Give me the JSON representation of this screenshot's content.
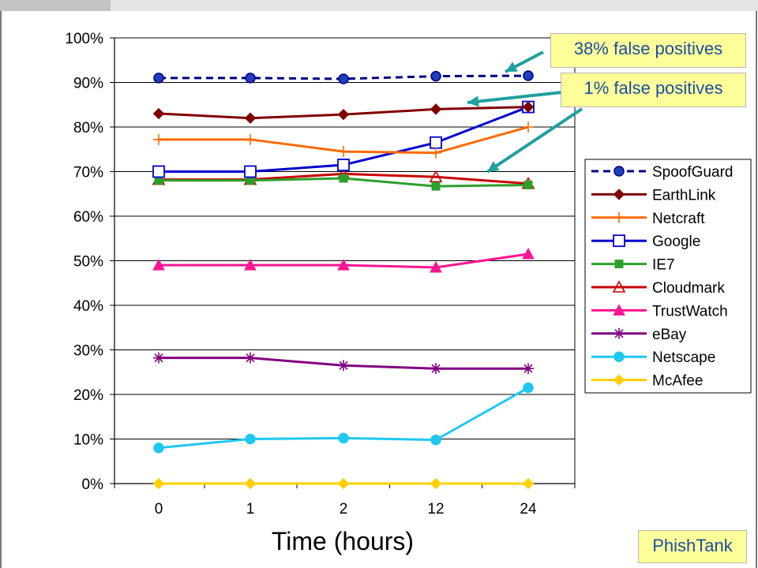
{
  "slide": {
    "callouts": {
      "false_pos_38": "38% false positives",
      "false_pos_1": "1% false positives"
    },
    "source_label": "PhishTank"
  },
  "chart_data": {
    "type": "line",
    "title": "",
    "xlabel": "Time (hours)",
    "ylabel": "",
    "categories": [
      "0",
      "1",
      "2",
      "12",
      "24"
    ],
    "ylim": [
      0,
      100
    ],
    "yticks": [
      "0%",
      "10%",
      "20%",
      "30%",
      "40%",
      "50%",
      "60%",
      "70%",
      "80%",
      "90%",
      "100%"
    ],
    "grid": true,
    "legend_position": "right",
    "series": [
      {
        "name": "SpoofGuard",
        "values": [
          91,
          91,
          90.8,
          91.4,
          91.5
        ],
        "color": "#000080",
        "marker": "circle",
        "marker_fill": "#1f3fbf",
        "dashed": true
      },
      {
        "name": "EarthLink",
        "values": [
          83,
          82,
          82.8,
          84,
          84.5
        ],
        "color": "#800000",
        "marker": "diamond",
        "marker_fill": "#800000",
        "dashed": false
      },
      {
        "name": "Netcraft",
        "values": [
          77.2,
          77.2,
          74.5,
          74.2,
          80
        ],
        "color": "#ff6a00",
        "marker": "plus",
        "marker_fill": "none",
        "dashed": false
      },
      {
        "name": "Google",
        "values": [
          70,
          70,
          71.5,
          76.5,
          84.5
        ],
        "color": "#0000d0",
        "marker": "square",
        "marker_fill": "#ffffff",
        "dashed": false
      },
      {
        "name": "IE7",
        "values": [
          68,
          68,
          68.5,
          66.7,
          67
        ],
        "color": "#2ca02c",
        "marker": "square-filled",
        "marker_fill": "#2ca02c",
        "dashed": false
      },
      {
        "name": "Cloudmark",
        "values": [
          68.2,
          68.2,
          69.5,
          68.8,
          67.3
        ],
        "color": "#cc0000",
        "marker": "triangle",
        "marker_fill": "none",
        "dashed": false
      },
      {
        "name": "TrustWatch",
        "values": [
          49,
          49,
          49,
          48.5,
          51.5
        ],
        "color": "#ff1493",
        "marker": "triangle-filled",
        "marker_fill": "#ff1493",
        "dashed": false
      },
      {
        "name": "eBay",
        "values": [
          28.2,
          28.2,
          26.5,
          25.8,
          25.8
        ],
        "color": "#800080",
        "marker": "star",
        "marker_fill": "none",
        "dashed": false
      },
      {
        "name": "Netscape",
        "values": [
          8,
          10,
          10.2,
          9.8,
          21.5
        ],
        "color": "#1ec8f0",
        "marker": "circle",
        "marker_fill": "#1ec8f0",
        "dashed": false
      },
      {
        "name": "McAfee",
        "values": [
          0,
          0,
          0,
          0,
          0
        ],
        "color": "#ffd000",
        "marker": "diamond",
        "marker_fill": "#ffd000",
        "dashed": false
      }
    ]
  }
}
